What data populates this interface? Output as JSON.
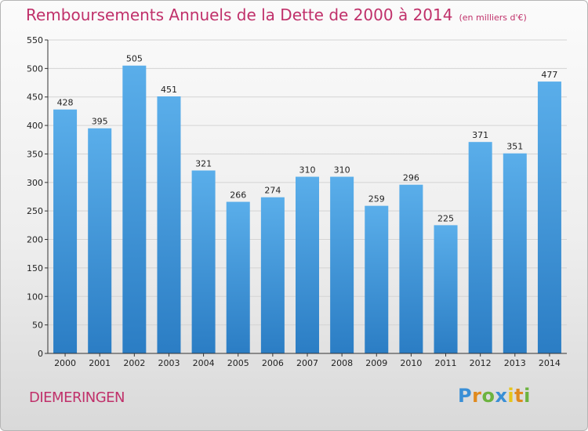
{
  "header": {
    "title": "Remboursements Annuels de la Dette de 2000 à 2014",
    "unit": "(en milliers d'€)"
  },
  "footer": {
    "commune": "DIEMERINGEN",
    "logo_text": "Proxiti",
    "logo_letters": [
      {
        "ch": "P",
        "color": "#3a8fd6"
      },
      {
        "ch": "r",
        "color": "#e08a1e"
      },
      {
        "ch": "o",
        "color": "#6cb33f"
      },
      {
        "ch": "x",
        "color": "#3a8fd6"
      },
      {
        "ch": "i",
        "color": "#e6c51c"
      },
      {
        "ch": "t",
        "color": "#e08a1e"
      },
      {
        "ch": "i",
        "color": "#6cb33f"
      }
    ]
  },
  "colors": {
    "title": "#c0306a",
    "bar_top": "#5aaeea",
    "bar_bottom": "#2b7dc4",
    "grid": "#d4d4d4",
    "axis": "#333333"
  },
  "chart_data": {
    "type": "bar",
    "title": "Remboursements Annuels de la Dette de 2000 à 2014",
    "subtitle": "(en milliers d'€)",
    "xlabel": "",
    "ylabel": "",
    "ylim": [
      0,
      550
    ],
    "yticks": [
      0,
      50,
      100,
      150,
      200,
      250,
      300,
      350,
      400,
      450,
      500,
      550
    ],
    "grid": true,
    "categories": [
      "2000",
      "2001",
      "2002",
      "2003",
      "2004",
      "2005",
      "2006",
      "2007",
      "2008",
      "2009",
      "2010",
      "2011",
      "2012",
      "2013",
      "2014"
    ],
    "values": [
      428,
      395,
      505,
      451,
      321,
      266,
      274,
      310,
      310,
      259,
      296,
      225,
      371,
      351,
      477
    ]
  }
}
